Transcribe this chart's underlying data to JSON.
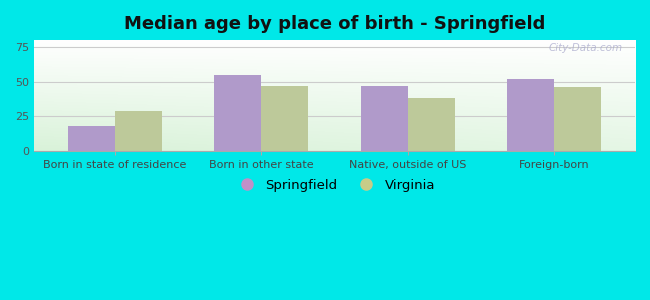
{
  "title": "Median age by place of birth - Springfield",
  "categories": [
    "Born in state of residence",
    "Born in other state",
    "Native, outside of US",
    "Foreign-born"
  ],
  "springfield_values": [
    18,
    55,
    47,
    52
  ],
  "virginia_values": [
    29,
    47,
    38,
    46
  ],
  "springfield_color": "#b09aca",
  "virginia_color": "#bdc99a",
  "background_color": "#00e8e8",
  "ylim": [
    0,
    80
  ],
  "yticks": [
    0,
    25,
    50,
    75
  ],
  "bar_width": 0.32,
  "legend_labels": [
    "Springfield",
    "Virginia"
  ],
  "legend_dot_colors": [
    "#c090c8",
    "#c8cc88"
  ],
  "title_fontsize": 13,
  "tick_fontsize": 8,
  "legend_fontsize": 9.5,
  "watermark": "City-Data.com",
  "grid_color": "#cccccc",
  "plot_bg_color_topleft": "#e8f8e8",
  "plot_bg_color_white": "#ffffff"
}
